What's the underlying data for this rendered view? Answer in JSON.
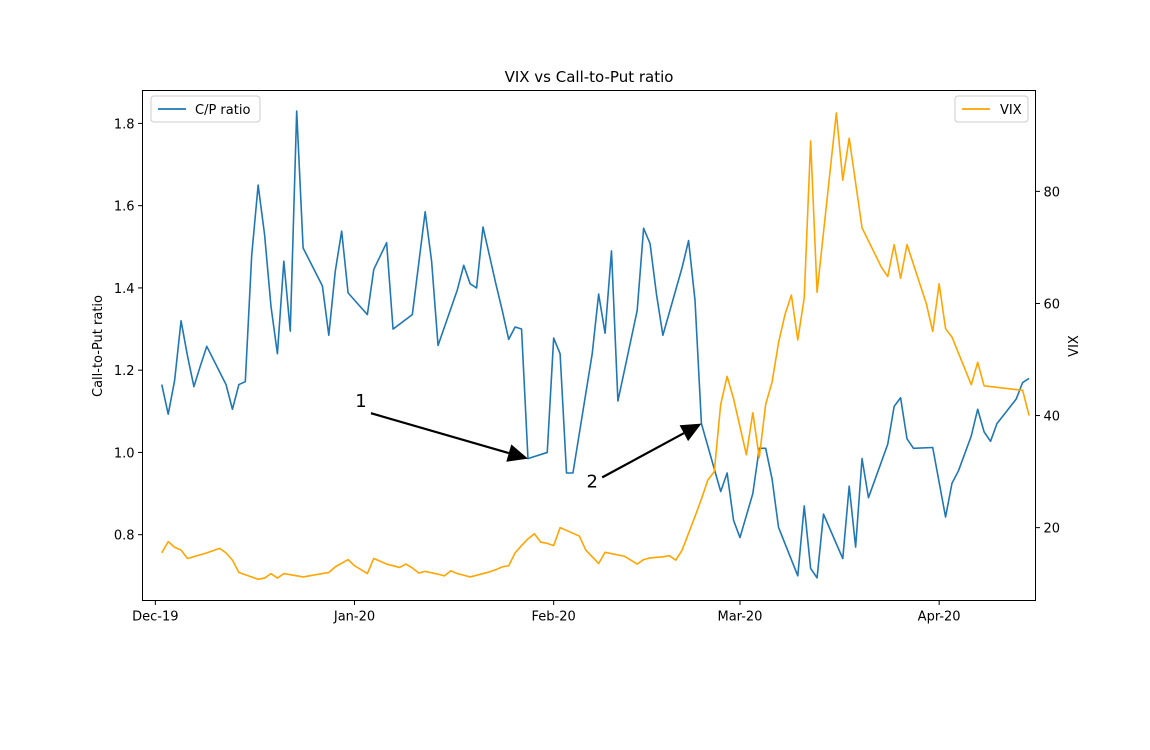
{
  "chart_data": {
    "type": "line",
    "title": "VIX vs Call-to-Put ratio",
    "ylabel_left": "Call-to-Put ratio",
    "ylabel_right": "VIX",
    "xlabel": "",
    "x_ticks": [
      {
        "date": "2019-12-01",
        "label": "Dec-19"
      },
      {
        "date": "2020-01-01",
        "label": "Jan-20"
      },
      {
        "date": "2020-02-01",
        "label": "Feb-20"
      },
      {
        "date": "2020-03-01",
        "label": "Mar-20"
      },
      {
        "date": "2020-04-01",
        "label": "Apr-20"
      }
    ],
    "xlim": [
      "2019-11-29",
      "2020-04-16"
    ],
    "ylim_left": [
      0.64,
      1.88
    ],
    "ylim_right": [
      7,
      98
    ],
    "yticks_left": [
      {
        "value": 0.8,
        "label": "0.8"
      },
      {
        "value": 1.0,
        "label": "1.0"
      },
      {
        "value": 1.2,
        "label": "1.2"
      },
      {
        "value": 1.4,
        "label": "1.4"
      },
      {
        "value": 1.6,
        "label": "1.6"
      },
      {
        "value": 1.8,
        "label": "1.8"
      }
    ],
    "yticks_right": [
      {
        "value": 20,
        "label": "20"
      },
      {
        "value": 40,
        "label": "40"
      },
      {
        "value": 60,
        "label": "60"
      },
      {
        "value": 80,
        "label": "80"
      }
    ],
    "grid": false,
    "series": [
      {
        "name": "C/P ratio",
        "axis": "left",
        "color": "#1f77b4",
        "points": [
          [
            "2019-12-02",
            1.165
          ],
          [
            "2019-12-03",
            1.093
          ],
          [
            "2019-12-04",
            1.175
          ],
          [
            "2019-12-05",
            1.32
          ],
          [
            "2019-12-06",
            1.235
          ],
          [
            "2019-12-07",
            1.16
          ],
          [
            "2019-12-08",
            1.21
          ],
          [
            "2019-12-09",
            1.258
          ],
          [
            "2019-12-12",
            1.165
          ],
          [
            "2019-12-13",
            1.105
          ],
          [
            "2019-12-14",
            1.165
          ],
          [
            "2019-12-15",
            1.172
          ],
          [
            "2019-12-16",
            1.48
          ],
          [
            "2019-12-17",
            1.65
          ],
          [
            "2019-12-18",
            1.53
          ],
          [
            "2019-12-19",
            1.355
          ],
          [
            "2019-12-20",
            1.24
          ],
          [
            "2019-12-21",
            1.465
          ],
          [
            "2019-12-22",
            1.295
          ],
          [
            "2019-12-23",
            1.83
          ],
          [
            "2019-12-24",
            1.497
          ],
          [
            "2019-12-27",
            1.405
          ],
          [
            "2019-12-28",
            1.285
          ],
          [
            "2019-12-29",
            1.44
          ],
          [
            "2019-12-30",
            1.538
          ],
          [
            "2019-12-31",
            1.388
          ],
          [
            "2020-01-03",
            1.335
          ],
          [
            "2020-01-04",
            1.445
          ],
          [
            "2020-01-06",
            1.51
          ],
          [
            "2020-01-07",
            1.3
          ],
          [
            "2020-01-10",
            1.335
          ],
          [
            "2020-01-12",
            1.585
          ],
          [
            "2020-01-13",
            1.465
          ],
          [
            "2020-01-14",
            1.26
          ],
          [
            "2020-01-15",
            1.305
          ],
          [
            "2020-01-17",
            1.395
          ],
          [
            "2020-01-18",
            1.455
          ],
          [
            "2020-01-19",
            1.41
          ],
          [
            "2020-01-20",
            1.4
          ],
          [
            "2020-01-21",
            1.548
          ],
          [
            "2020-01-23",
            1.41
          ],
          [
            "2020-01-24",
            1.345
          ],
          [
            "2020-01-25",
            1.275
          ],
          [
            "2020-01-26",
            1.305
          ],
          [
            "2020-01-27",
            1.3
          ],
          [
            "2020-01-28",
            0.985
          ],
          [
            "2020-01-31",
            1.0
          ],
          [
            "2020-02-01",
            1.278
          ],
          [
            "2020-02-02",
            1.24
          ],
          [
            "2020-02-03",
            0.95
          ],
          [
            "2020-02-04",
            0.95
          ],
          [
            "2020-02-07",
            1.24
          ],
          [
            "2020-02-08",
            1.385
          ],
          [
            "2020-02-09",
            1.29
          ],
          [
            "2020-02-10",
            1.49
          ],
          [
            "2020-02-11",
            1.125
          ],
          [
            "2020-02-14",
            1.345
          ],
          [
            "2020-02-15",
            1.545
          ],
          [
            "2020-02-16",
            1.508
          ],
          [
            "2020-02-17",
            1.385
          ],
          [
            "2020-02-18",
            1.285
          ],
          [
            "2020-02-21",
            1.45
          ],
          [
            "2020-02-22",
            1.515
          ],
          [
            "2020-02-23",
            1.37
          ],
          [
            "2020-02-24",
            1.07
          ],
          [
            "2020-02-27",
            0.905
          ],
          [
            "2020-02-28",
            0.95
          ],
          [
            "2020-02-29",
            0.835
          ],
          [
            "2020-03-01",
            0.793
          ],
          [
            "2020-03-03",
            0.9
          ],
          [
            "2020-03-04",
            1.01
          ],
          [
            "2020-03-05",
            1.01
          ],
          [
            "2020-03-06",
            0.935
          ],
          [
            "2020-03-07",
            0.818
          ],
          [
            "2020-03-10",
            0.7
          ],
          [
            "2020-03-11",
            0.87
          ],
          [
            "2020-03-12",
            0.718
          ],
          [
            "2020-03-13",
            0.695
          ],
          [
            "2020-03-14",
            0.85
          ],
          [
            "2020-03-17",
            0.742
          ],
          [
            "2020-03-18",
            0.918
          ],
          [
            "2020-03-19",
            0.77
          ],
          [
            "2020-03-20",
            0.985
          ],
          [
            "2020-03-21",
            0.89
          ],
          [
            "2020-03-24",
            1.02
          ],
          [
            "2020-03-25",
            1.112
          ],
          [
            "2020-03-26",
            1.133
          ],
          [
            "2020-03-27",
            1.033
          ],
          [
            "2020-03-28",
            1.01
          ],
          [
            "2020-03-31",
            1.012
          ],
          [
            "2020-04-02",
            0.843
          ],
          [
            "2020-04-03",
            0.925
          ],
          [
            "2020-04-04",
            0.955
          ],
          [
            "2020-04-06",
            1.04
          ],
          [
            "2020-04-07",
            1.105
          ],
          [
            "2020-04-08",
            1.05
          ],
          [
            "2020-04-09",
            1.027
          ],
          [
            "2020-04-10",
            1.07
          ],
          [
            "2020-04-13",
            1.13
          ],
          [
            "2020-04-14",
            1.17
          ],
          [
            "2020-04-15",
            1.18
          ]
        ]
      },
      {
        "name": "VIX",
        "axis": "right",
        "color": "#ffa500",
        "points": [
          [
            "2019-12-02",
            15.5
          ],
          [
            "2019-12-03",
            17.5
          ],
          [
            "2019-12-04",
            16.5
          ],
          [
            "2019-12-05",
            16.0
          ],
          [
            "2019-12-06",
            14.5
          ],
          [
            "2019-12-09",
            15.5
          ],
          [
            "2019-12-11",
            16.3
          ],
          [
            "2019-12-12",
            15.5
          ],
          [
            "2019-12-13",
            14.2
          ],
          [
            "2019-12-14",
            12.0
          ],
          [
            "2019-12-16",
            11.2
          ],
          [
            "2019-12-17",
            10.8
          ],
          [
            "2019-12-18",
            11.0
          ],
          [
            "2019-12-19",
            11.8
          ],
          [
            "2019-12-20",
            11.0
          ],
          [
            "2019-12-21",
            11.8
          ],
          [
            "2019-12-24",
            11.2
          ],
          [
            "2019-12-27",
            11.8
          ],
          [
            "2019-12-28",
            12.0
          ],
          [
            "2019-12-29",
            13.0
          ],
          [
            "2019-12-31",
            14.3
          ],
          [
            "2020-01-01",
            13.2
          ],
          [
            "2020-01-03",
            11.8
          ],
          [
            "2020-01-04",
            14.5
          ],
          [
            "2020-01-06",
            13.5
          ],
          [
            "2020-01-08",
            12.9
          ],
          [
            "2020-01-09",
            13.5
          ],
          [
            "2020-01-10",
            12.8
          ],
          [
            "2020-01-11",
            11.9
          ],
          [
            "2020-01-12",
            12.2
          ],
          [
            "2020-01-14",
            11.7
          ],
          [
            "2020-01-15",
            11.4
          ],
          [
            "2020-01-16",
            12.3
          ],
          [
            "2020-01-17",
            11.8
          ],
          [
            "2020-01-18",
            11.5
          ],
          [
            "2020-01-19",
            11.2
          ],
          [
            "2020-01-22",
            12.1
          ],
          [
            "2020-01-23",
            12.5
          ],
          [
            "2020-01-24",
            13.0
          ],
          [
            "2020-01-25",
            13.2
          ],
          [
            "2020-01-26",
            15.5
          ],
          [
            "2020-01-27",
            16.8
          ],
          [
            "2020-01-28",
            18.0
          ],
          [
            "2020-01-29",
            18.9
          ],
          [
            "2020-01-30",
            17.4
          ],
          [
            "2020-01-31",
            17.2
          ],
          [
            "2020-02-01",
            16.8
          ],
          [
            "2020-02-02",
            20.0
          ],
          [
            "2020-02-03",
            19.5
          ],
          [
            "2020-02-05",
            18.5
          ],
          [
            "2020-02-06",
            16.0
          ],
          [
            "2020-02-08",
            13.6
          ],
          [
            "2020-02-09",
            15.6
          ],
          [
            "2020-02-12",
            14.9
          ],
          [
            "2020-02-14",
            13.5
          ],
          [
            "2020-02-15",
            14.3
          ],
          [
            "2020-02-16",
            14.6
          ],
          [
            "2020-02-18",
            14.8
          ],
          [
            "2020-02-19",
            15.0
          ],
          [
            "2020-02-20",
            14.2
          ],
          [
            "2020-02-21",
            16.0
          ],
          [
            "2020-02-23",
            22.0
          ],
          [
            "2020-02-24",
            25.1
          ],
          [
            "2020-02-25",
            28.5
          ],
          [
            "2020-02-26",
            30.0
          ],
          [
            "2020-02-27",
            42.0
          ],
          [
            "2020-02-28",
            47.0
          ],
          [
            "2020-02-29",
            43.0
          ],
          [
            "2020-03-02",
            33.0
          ],
          [
            "2020-03-03",
            40.5
          ],
          [
            "2020-03-04",
            32.5
          ],
          [
            "2020-03-05",
            42.0
          ],
          [
            "2020-03-06",
            46.0
          ],
          [
            "2020-03-07",
            53.0
          ],
          [
            "2020-03-08",
            58.0
          ],
          [
            "2020-03-09",
            61.5
          ],
          [
            "2020-03-10",
            53.5
          ],
          [
            "2020-03-11",
            61.0
          ],
          [
            "2020-03-12",
            89.0
          ],
          [
            "2020-03-13",
            62.0
          ],
          [
            "2020-03-16",
            94.0
          ],
          [
            "2020-03-17",
            82.0
          ],
          [
            "2020-03-18",
            89.5
          ],
          [
            "2020-03-20",
            73.5
          ],
          [
            "2020-03-23",
            66.5
          ],
          [
            "2020-03-24",
            64.8
          ],
          [
            "2020-03-25",
            70.5
          ],
          [
            "2020-03-26",
            64.5
          ],
          [
            "2020-03-27",
            70.5
          ],
          [
            "2020-03-30",
            60.0
          ],
          [
            "2020-03-31",
            55.0
          ],
          [
            "2020-04-01",
            63.5
          ],
          [
            "2020-04-02",
            55.5
          ],
          [
            "2020-04-03",
            54.0
          ],
          [
            "2020-04-06",
            45.5
          ],
          [
            "2020-04-07",
            49.5
          ],
          [
            "2020-04-08",
            45.3
          ],
          [
            "2020-04-14",
            44.5
          ],
          [
            "2020-04-15",
            40.0
          ]
        ]
      }
    ],
    "legend": [
      {
        "label": "C/P ratio",
        "placement": "top-left"
      },
      {
        "label": "VIX",
        "placement": "top-right"
      }
    ],
    "annotations": [
      {
        "text": "1",
        "text_at": [
          "2020-01-02",
          1.11
        ],
        "arrow_to": [
          "2020-01-28",
          0.985
        ]
      },
      {
        "text": "2",
        "text_at": [
          "2020-02-07",
          0.915
        ],
        "arrow_to": [
          "2020-02-24",
          1.07
        ]
      }
    ]
  }
}
